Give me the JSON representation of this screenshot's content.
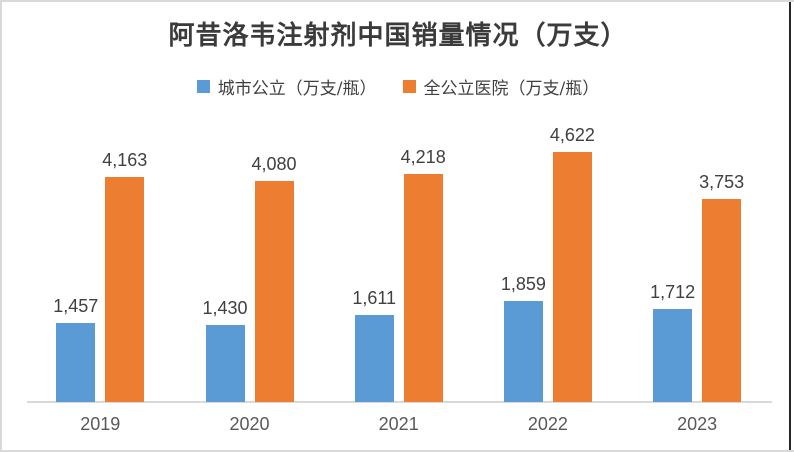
{
  "frame": {
    "background": "#ffffff",
    "border_color": "#d9d9d9",
    "right_edge_color": "#262626"
  },
  "title": {
    "text": "阿昔洛韦注射剂中国销量情况（万支）",
    "color": "#3b3b3b"
  },
  "legend": {
    "position": "top",
    "items": [
      {
        "label": "城市公立（万支/瓶）",
        "color": "#5b9bd5"
      },
      {
        "label": "全公立医院（万支/瓶）",
        "color": "#ed7d31"
      }
    ]
  },
  "chart_data": {
    "type": "bar",
    "title": "阿昔洛韦注射剂中国销量情况（万支）",
    "categories": [
      "2019",
      "2020",
      "2021",
      "2022",
      "2023"
    ],
    "series": [
      {
        "name": "城市公立（万支/瓶）",
        "color": "#5b9bd5",
        "values": [
          1457,
          1430,
          1611,
          1859,
          1712
        ]
      },
      {
        "name": "全公立医院（万支/瓶）",
        "color": "#ed7d31",
        "values": [
          4163,
          4080,
          4218,
          4622,
          3753
        ]
      }
    ],
    "data_labels": true,
    "label_format": "thousands-comma",
    "data_label_values": [
      [
        "1,457",
        "1,430",
        "1,611",
        "1,859",
        "1,712"
      ],
      [
        "4,163",
        "4,080",
        "4,218",
        "4,622",
        "3,753"
      ]
    ],
    "xlabel": "",
    "ylabel": "",
    "ylim": [
      0,
      5000
    ],
    "grid": false,
    "legend_position": "top",
    "axis_line_color": "#d9d9d9",
    "category_label_color": "#595959",
    "data_label_color": "#404040"
  }
}
